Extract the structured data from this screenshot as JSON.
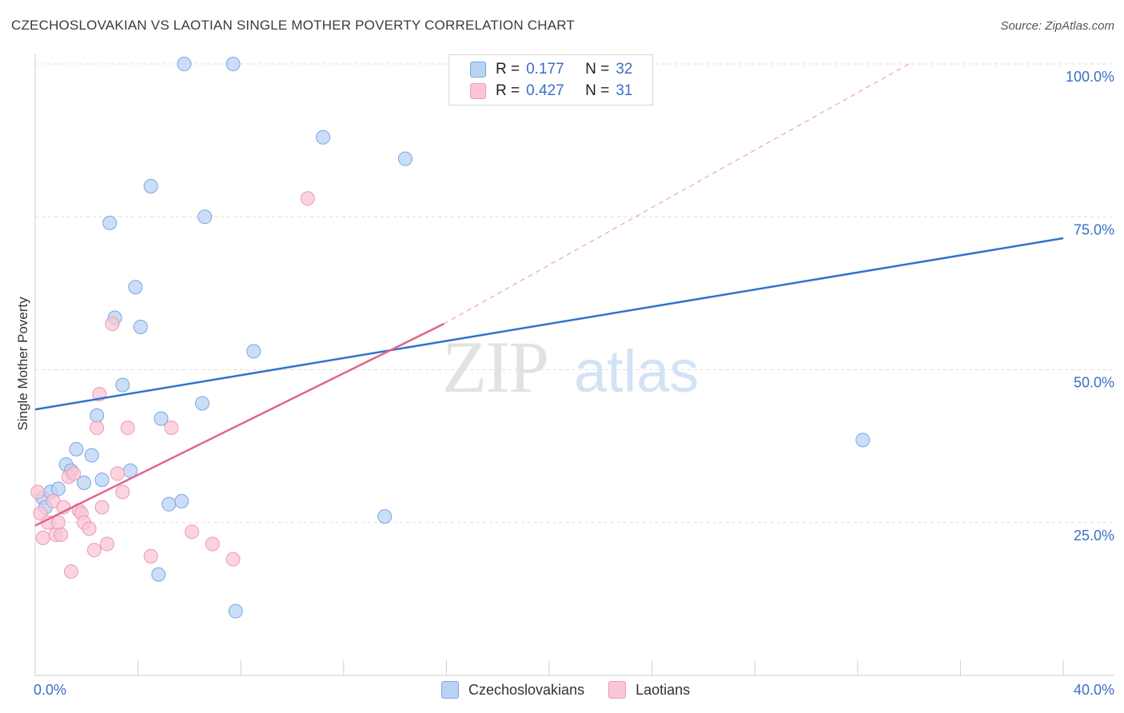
{
  "header": {
    "title": "CZECHOSLOVAKIAN VS LAOTIAN SINGLE MOTHER POVERTY CORRELATION CHART",
    "source": "Source: ZipAtlas.com"
  },
  "legend": {
    "rows": [
      {
        "r_label": "R =",
        "r_value": "0.177",
        "n_label": "N =",
        "n_value": "32"
      },
      {
        "r_label": "R =",
        "r_value": "0.427",
        "n_label": "N =",
        "n_value": "31"
      }
    ]
  },
  "bottom_legend": {
    "items": [
      {
        "label": "Czechoslovakians"
      },
      {
        "label": "Laotians"
      }
    ]
  },
  "watermark": {
    "part1": "ZIP",
    "part2": "atlas"
  },
  "colors": {
    "blue_fill": "#b9d3f5",
    "blue_stroke": "#7aa6e0",
    "blue_line": "#2f72cf",
    "pink_fill": "#f9c6d6",
    "pink_stroke": "#e99ab4",
    "pink_line": "#e0648e",
    "axis_text": "#3a6fc4",
    "grid": "#dddddd"
  },
  "chart_data": {
    "type": "scatter",
    "title": "CZECHOSLOVAKIAN VS LAOTIAN SINGLE MOTHER POVERTY CORRELATION CHART",
    "xlabel": "",
    "ylabel": "Single Mother Poverty",
    "xlim": [
      0,
      40
    ],
    "ylim": [
      0,
      102
    ],
    "x_tick_labels": [
      {
        "value": 0,
        "label": "0.0%"
      },
      {
        "value": 40,
        "label": "40.0%"
      }
    ],
    "y_tick_labels": [
      {
        "value": 25,
        "label": "25.0%"
      },
      {
        "value": 50,
        "label": "50.0%"
      },
      {
        "value": 75,
        "label": "75.0%"
      },
      {
        "value": 100,
        "label": "100.0%"
      }
    ],
    "series": [
      {
        "name": "Czechoslovakians",
        "color": "blue",
        "points": [
          [
            0.3,
            29.0
          ],
          [
            0.4,
            27.5
          ],
          [
            0.6,
            30.0
          ],
          [
            0.9,
            30.5
          ],
          [
            1.2,
            34.5
          ],
          [
            1.4,
            33.5
          ],
          [
            1.6,
            37.0
          ],
          [
            1.9,
            31.5
          ],
          [
            2.2,
            36.0
          ],
          [
            2.4,
            42.5
          ],
          [
            2.6,
            32.0
          ],
          [
            2.9,
            74.0
          ],
          [
            3.1,
            58.5
          ],
          [
            3.4,
            47.5
          ],
          [
            3.7,
            33.5
          ],
          [
            3.9,
            63.5
          ],
          [
            4.1,
            57.0
          ],
          [
            4.5,
            80.0
          ],
          [
            4.8,
            16.5
          ],
          [
            4.9,
            42.0
          ],
          [
            5.2,
            28.0
          ],
          [
            5.7,
            28.5
          ],
          [
            5.8,
            100.0
          ],
          [
            6.5,
            44.5
          ],
          [
            6.6,
            75.0
          ],
          [
            7.7,
            100.0
          ],
          [
            7.8,
            10.5
          ],
          [
            8.5,
            53.0
          ],
          [
            11.2,
            88.0
          ],
          [
            13.6,
            26.0
          ],
          [
            14.4,
            84.5
          ],
          [
            32.2,
            38.5
          ]
        ],
        "trend": {
          "x": [
            0,
            40
          ],
          "y": [
            43.5,
            71.5
          ],
          "style": "solid"
        }
      },
      {
        "name": "Laotians",
        "color": "pink",
        "points": [
          [
            0.1,
            30.0
          ],
          [
            0.2,
            26.5
          ],
          [
            0.3,
            22.5
          ],
          [
            0.5,
            25.0
          ],
          [
            0.7,
            28.5
          ],
          [
            0.8,
            23.0
          ],
          [
            0.9,
            25.0
          ],
          [
            1.0,
            23.0
          ],
          [
            1.1,
            27.5
          ],
          [
            1.3,
            32.5
          ],
          [
            1.4,
            17.0
          ],
          [
            1.5,
            33.0
          ],
          [
            1.7,
            27.0
          ],
          [
            1.8,
            26.5
          ],
          [
            1.9,
            25.0
          ],
          [
            2.1,
            24.0
          ],
          [
            2.3,
            20.5
          ],
          [
            2.4,
            40.5
          ],
          [
            2.5,
            46.0
          ],
          [
            2.6,
            27.5
          ],
          [
            2.8,
            21.5
          ],
          [
            3.0,
            57.5
          ],
          [
            3.2,
            33.0
          ],
          [
            3.4,
            30.0
          ],
          [
            3.6,
            40.5
          ],
          [
            4.5,
            19.5
          ],
          [
            5.3,
            40.5
          ],
          [
            6.1,
            23.5
          ],
          [
            6.9,
            21.5
          ],
          [
            7.7,
            19.0
          ],
          [
            10.6,
            78.0
          ]
        ],
        "trend": {
          "x": [
            0,
            15.9
          ],
          "y": [
            24.5,
            57.5
          ],
          "style": "solid",
          "extension": {
            "x": [
              15.9,
              34.0
            ],
            "y": [
              57.5,
              100.0
            ],
            "style": "dashed"
          }
        }
      }
    ]
  }
}
